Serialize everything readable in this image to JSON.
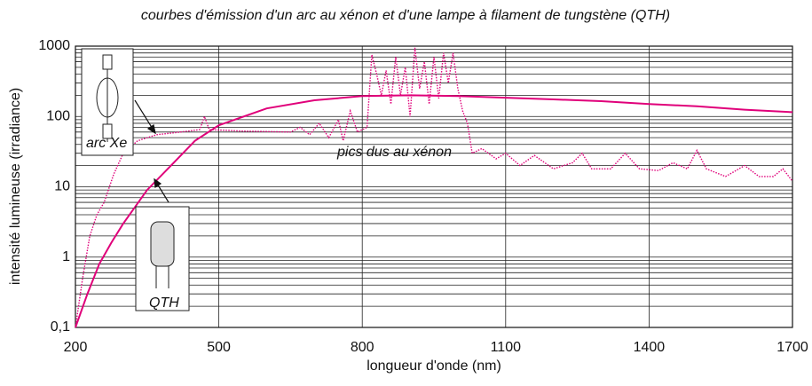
{
  "chart_data": {
    "type": "line",
    "title": "courbes d'émission d'un arc au xénon et d'une lampe à filament de tungstène (QTH)",
    "xlabel": "longueur d'onde (nm)",
    "ylabel": "intensité lumineuse (irradiance)",
    "annotation": "pics dus au xénon",
    "xlim": [
      200,
      1700
    ],
    "xticks": [
      200,
      500,
      800,
      1100,
      1400,
      1700
    ],
    "ylim": [
      0.1,
      1000
    ],
    "yticks": [
      {
        "value": 0.1,
        "label": "0,1"
      },
      1,
      10,
      100,
      1000
    ],
    "log_y": true,
    "grid": true,
    "minor_grid": true,
    "series": [
      {
        "name": "arc Xe",
        "color": "#e0007a",
        "dash": "dotted",
        "x": [
          200,
          215,
          230,
          245,
          260,
          280,
          300,
          330,
          370,
          420,
          460,
          470,
          480,
          550,
          650,
          670,
          690,
          710,
          730,
          750,
          760,
          775,
          790,
          810,
          820,
          830,
          840,
          850,
          860,
          870,
          880,
          890,
          900,
          910,
          920,
          930,
          940,
          950,
          960,
          970,
          980,
          990,
          1000,
          1010,
          1020,
          1030,
          1050,
          1080,
          1100,
          1130,
          1160,
          1200,
          1240,
          1260,
          1280,
          1320,
          1350,
          1380,
          1420,
          1450,
          1480,
          1500,
          1520,
          1560,
          1600,
          1630,
          1660,
          1680,
          1700
        ],
        "values": [
          0.1,
          0.5,
          2,
          4,
          6,
          15,
          30,
          45,
          55,
          60,
          65,
          100,
          65,
          62,
          60,
          70,
          55,
          80,
          50,
          90,
          45,
          120,
          60,
          70,
          750,
          400,
          200,
          450,
          150,
          700,
          200,
          500,
          100,
          950,
          250,
          600,
          150,
          700,
          180,
          800,
          300,
          800,
          250,
          120,
          80,
          30,
          35,
          25,
          30,
          20,
          28,
          18,
          22,
          30,
          18,
          18,
          30,
          18,
          17,
          22,
          18,
          33,
          18,
          14,
          20,
          14,
          14,
          18,
          12
        ]
      },
      {
        "name": "QTH",
        "color": "#e0007a",
        "dash": "solid",
        "x": [
          200,
          225,
          250,
          275,
          300,
          350,
          400,
          450,
          500,
          600,
          700,
          800,
          900,
          1000,
          1100,
          1200,
          1300,
          1400,
          1500,
          1600,
          1700
        ],
        "values": [
          0.1,
          0.3,
          0.8,
          1.6,
          3,
          9,
          20,
          45,
          75,
          130,
          170,
          195,
          200,
          195,
          185,
          175,
          165,
          150,
          140,
          125,
          115
        ]
      }
    ]
  }
}
